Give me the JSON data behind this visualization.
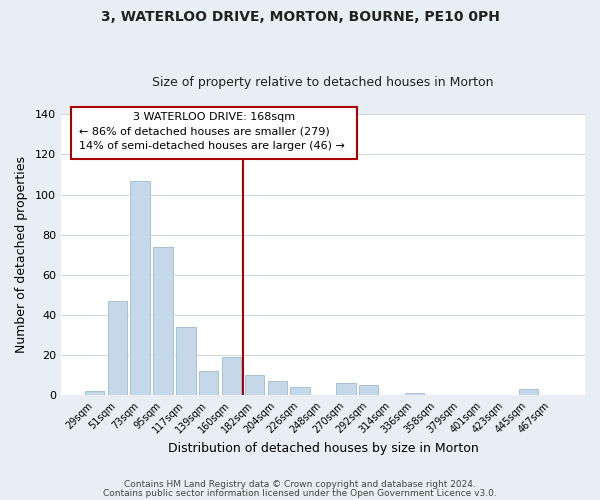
{
  "title": "3, WATERLOO DRIVE, MORTON, BOURNE, PE10 0PH",
  "subtitle": "Size of property relative to detached houses in Morton",
  "xlabel": "Distribution of detached houses by size in Morton",
  "ylabel": "Number of detached properties",
  "bar_color": "#c5d8ea",
  "bar_edgecolor": "#9bbcd4",
  "categories": [
    "29sqm",
    "51sqm",
    "73sqm",
    "95sqm",
    "117sqm",
    "139sqm",
    "160sqm",
    "182sqm",
    "204sqm",
    "226sqm",
    "248sqm",
    "270sqm",
    "292sqm",
    "314sqm",
    "336sqm",
    "358sqm",
    "379sqm",
    "401sqm",
    "423sqm",
    "445sqm",
    "467sqm"
  ],
  "values": [
    2,
    47,
    107,
    74,
    34,
    12,
    19,
    10,
    7,
    4,
    0,
    6,
    5,
    0,
    1,
    0,
    0,
    0,
    0,
    3,
    0
  ],
  "ylim": [
    0,
    140
  ],
  "yticks": [
    0,
    20,
    40,
    60,
    80,
    100,
    120,
    140
  ],
  "vline_x": 6.5,
  "vline_color": "#aa0000",
  "annotation_title": "3 WATERLOO DRIVE: 168sqm",
  "annotation_line1": "← 86% of detached houses are smaller (279)",
  "annotation_line2": "14% of semi-detached houses are larger (46) →",
  "annotation_box_color": "#ffffff",
  "annotation_box_edgecolor": "#aa0000",
  "footer1": "Contains HM Land Registry data © Crown copyright and database right 2024.",
  "footer2": "Contains public sector information licensed under the Open Government Licence v3.0.",
  "background_color": "#e8eef4",
  "plot_background": "#ffffff",
  "title_fontsize": 10,
  "subtitle_fontsize": 9
}
